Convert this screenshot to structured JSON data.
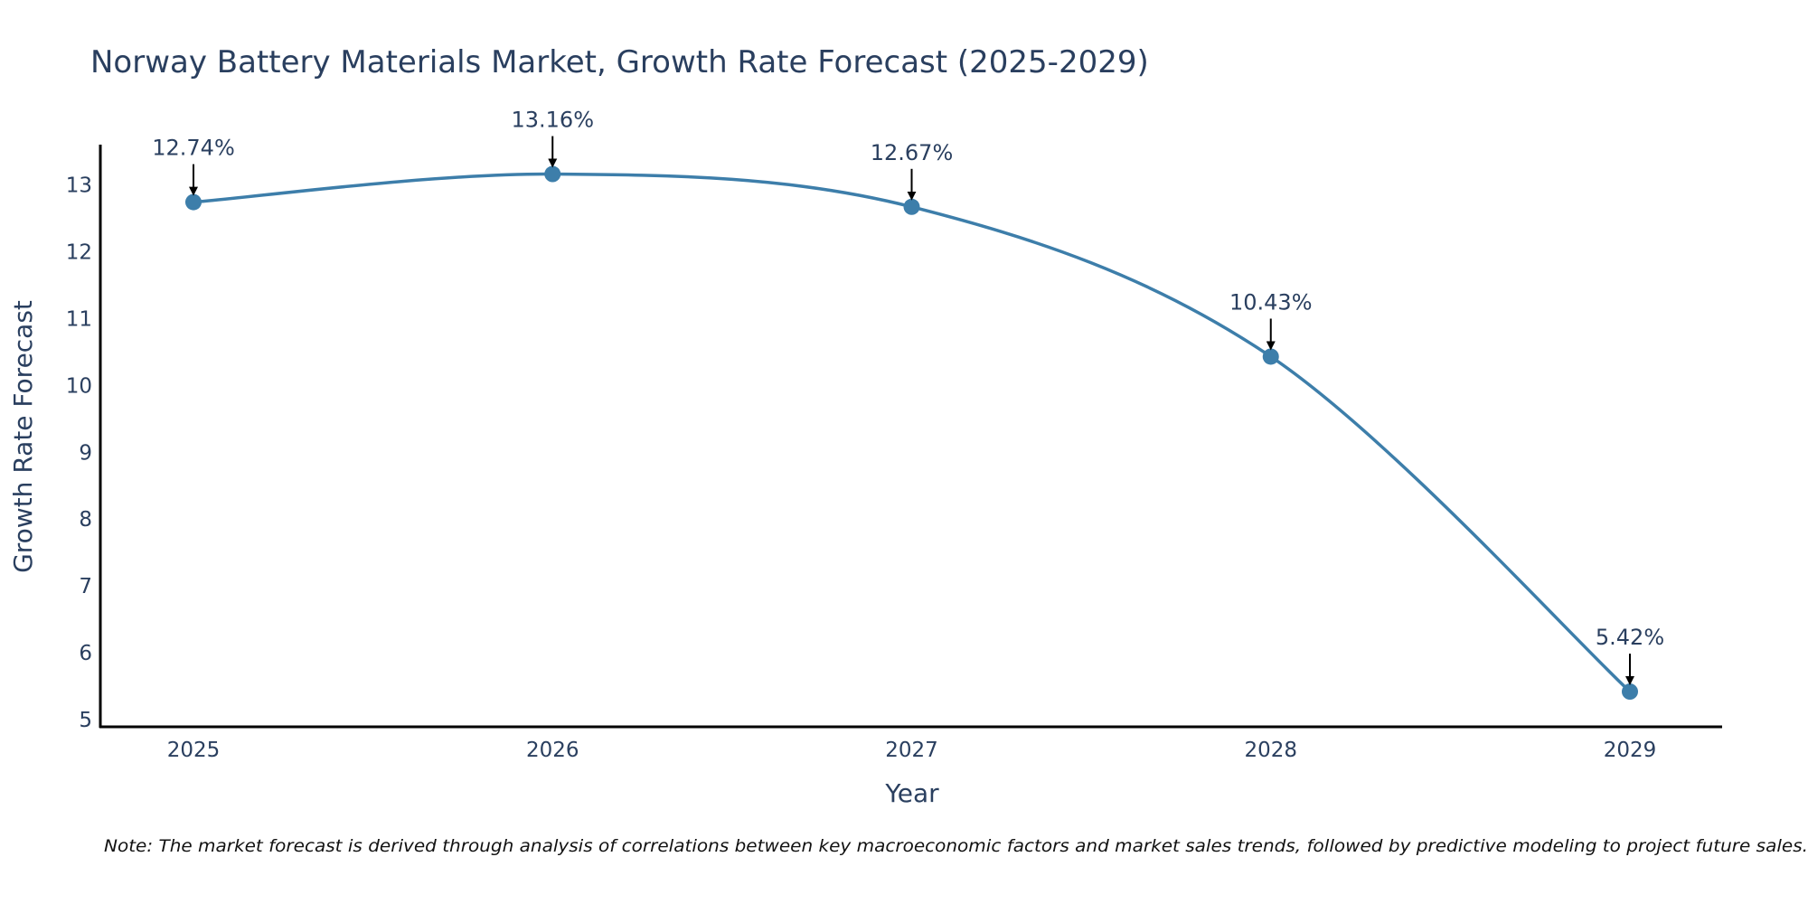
{
  "chart_data": {
    "type": "line",
    "title": "Norway Battery Materials Market, Growth Rate Forecast (2025-2029)",
    "xlabel": "Year",
    "ylabel": "Growth Rate Forecast",
    "categories": [
      "2025",
      "2026",
      "2027",
      "2028",
      "2029"
    ],
    "values": [
      12.74,
      13.16,
      12.67,
      10.43,
      5.42
    ],
    "data_labels": [
      "12.74%",
      "13.16%",
      "12.67%",
      "10.43%",
      "5.42%"
    ],
    "yticks": [
      5,
      6,
      7,
      8,
      9,
      10,
      11,
      12,
      13
    ],
    "ylim": [
      4.88,
      13.6
    ],
    "grid": false,
    "line_shape": "spline",
    "color": "#3d7eaa",
    "note": "Note: The market forecast is derived through analysis of correlations between key macroeconomic factors and market sales trends, followed by predictive modeling to project future sales."
  }
}
